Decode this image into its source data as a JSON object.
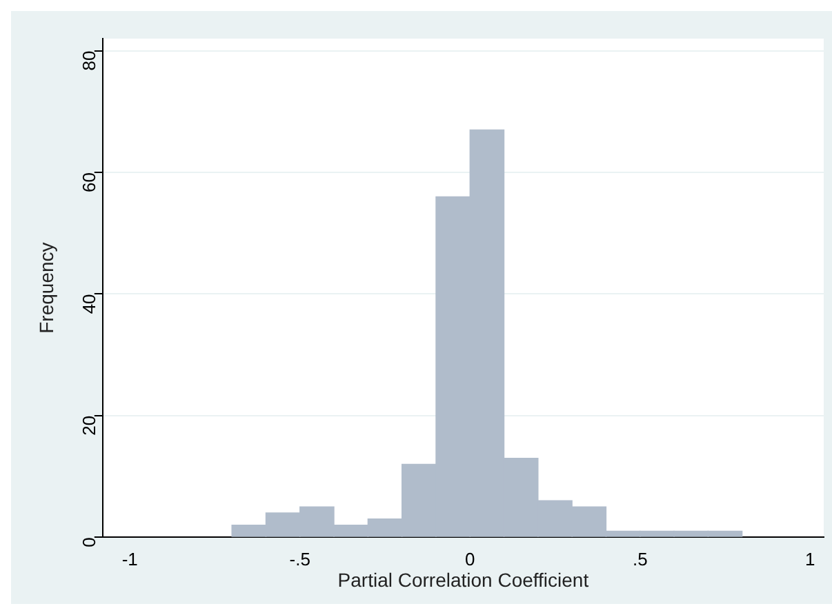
{
  "chart_data": {
    "type": "histogram",
    "xlabel": "Partial Correlation Coefficient",
    "ylabel": "Frequency",
    "bins": [
      -0.7,
      -0.6,
      -0.5,
      -0.4,
      -0.3,
      -0.2,
      -0.1,
      0,
      0.1,
      0.2,
      0.3,
      0.4,
      0.5,
      0.6,
      0.7,
      0.8
    ],
    "values": [
      2,
      4,
      5,
      2,
      3,
      12,
      56,
      67,
      13,
      6,
      5,
      1,
      1,
      1,
      1
    ],
    "color": "#b0bccb",
    "xlim": [
      -1.08,
      1.04
    ],
    "xticks": [
      -1,
      {
        "value": -0.5,
        "label": "-.5"
      },
      0,
      {
        "value": 0.5,
        "label": ".5"
      },
      1
    ],
    "ylim": [
      0,
      82
    ],
    "yticks": [
      0,
      20,
      40,
      60,
      80
    ],
    "grid": "y",
    "legend": false
  }
}
